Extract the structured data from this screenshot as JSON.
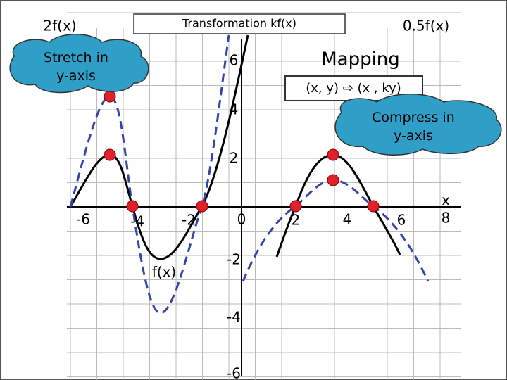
{
  "header": {
    "title": "Transformation kf(x)",
    "left_label": "2f(x)",
    "right_label": "0.5f(x)"
  },
  "callouts": {
    "stretch": "Stretch in y-axis",
    "compress": "Compress in y-axis"
  },
  "mapping": {
    "title": "Mapping",
    "rule": "(x, y) ⇨ (x , ky)"
  },
  "graph": {
    "x_labels": [
      "-6",
      "-4",
      "-2",
      "0",
      "2",
      "4",
      "6",
      "8"
    ],
    "y_labels": [
      "6",
      "4",
      "2",
      "-2",
      "-4",
      "-6"
    ],
    "x_axis_name": "x",
    "curve_label": "f(x)"
  }
}
